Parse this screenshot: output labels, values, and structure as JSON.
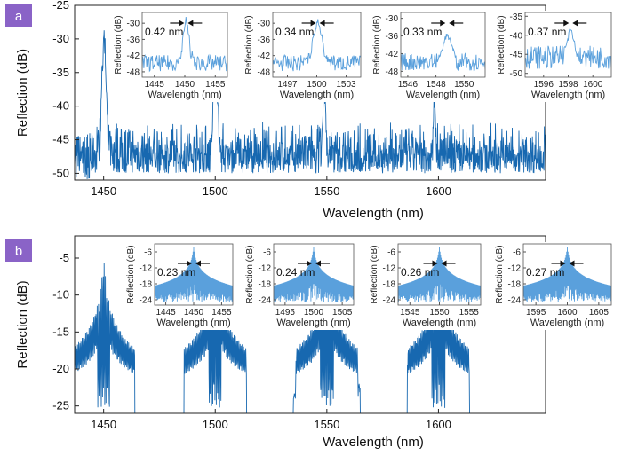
{
  "colors": {
    "trace": "#1768b0",
    "inset_trace": "#5aa0dc",
    "badge": "#8a63c7",
    "axis": "#222222"
  },
  "chart_data": [
    {
      "panel": "a",
      "type": "line",
      "xlabel": "Wavelength (nm)",
      "ylabel": "Reflection (dB)",
      "xlim": [
        1437,
        1648
      ],
      "ylim": [
        -51,
        -25
      ],
      "xticks": [
        1450,
        1500,
        1550,
        1600
      ],
      "yticks": [
        -25,
        -30,
        -35,
        -40,
        -45,
        -50
      ],
      "noise_floor_db": [
        -50,
        -42
      ],
      "peaks": [
        {
          "x": 1450.2,
          "y": -25.6
        },
        {
          "x": 1500.1,
          "y": -28.0
        },
        {
          "x": 1548.8,
          "y": -33.5
        },
        {
          "x": 1598.2,
          "y": -36.5
        }
      ],
      "insets": [
        {
          "xlabel": "Wavelength (nm)",
          "ylabel": "Reflection (dB)",
          "xticks": [
            1445,
            1450,
            1455
          ],
          "yticks": [
            -30,
            -36,
            -42,
            -48
          ],
          "xlim": [
            1443,
            1457
          ],
          "ylim": [
            -50,
            -26
          ],
          "center": 1450.2,
          "peak": -27,
          "floor": -46,
          "fwhm": "0.42 nm"
        },
        {
          "xlabel": "Wavelength (nm)",
          "ylabel": "Reflection (dB)",
          "xticks": [
            1497,
            1500,
            1503
          ],
          "yticks": [
            -30,
            -36,
            -42,
            -48
          ],
          "xlim": [
            1495.5,
            1504.5
          ],
          "ylim": [
            -50,
            -26
          ],
          "center": 1500.1,
          "peak": -28,
          "floor": -46,
          "fwhm": "0.34 nm"
        },
        {
          "xlabel": "Wavelength (nm)",
          "ylabel": "Reflection (dB)",
          "xticks": [
            1546,
            1548,
            1550
          ],
          "yticks": [
            -30,
            -36,
            -42,
            -48
          ],
          "xlim": [
            1545.5,
            1551.5
          ],
          "ylim": [
            -50,
            -28
          ],
          "center": 1548.8,
          "peak": -34,
          "floor": -46,
          "fwhm": "0.33 nm"
        },
        {
          "xlabel": "Wavelength (nm)",
          "ylabel": "Reflection (dB)",
          "xticks": [
            1596,
            1598,
            1600
          ],
          "yticks": [
            -35,
            -40,
            -45,
            -50
          ],
          "xlim": [
            1594.5,
            1601.5
          ],
          "ylim": [
            -51,
            -34
          ],
          "center": 1598.2,
          "peak": -37,
          "floor": -47,
          "fwhm": "0.37 nm"
        }
      ]
    },
    {
      "panel": "b",
      "type": "line",
      "xlabel": "Wavelength (nm)",
      "ylabel": "Reflection (dB)",
      "xlim": [
        1437,
        1648
      ],
      "ylim": [
        -26,
        -2
      ],
      "xticks": [
        1450,
        1500,
        1550,
        1600
      ],
      "yticks": [
        -5,
        -10,
        -15,
        -20,
        -25
      ],
      "peaks": [
        {
          "x": 1450,
          "y": -2.5
        },
        {
          "x": 1500,
          "y": -2.5
        },
        {
          "x": 1550,
          "y": -2.5
        },
        {
          "x": 1600,
          "y": -2.5
        }
      ],
      "insets": [
        {
          "xlabel": "Wavelength (nm)",
          "ylabel": "Reflection (dB)",
          "xticks": [
            1445,
            1450,
            1455
          ],
          "yticks": [
            -6,
            -12,
            -18,
            -24
          ],
          "xlim": [
            1443,
            1457
          ],
          "ylim": [
            -26,
            -3
          ],
          "center": 1450,
          "peak": -4,
          "floor": -25,
          "fwhm": "0.23 nm"
        },
        {
          "xlabel": "Wavelength (nm)",
          "ylabel": "Reflection (dB)",
          "xticks": [
            1495,
            1500,
            1505
          ],
          "yticks": [
            -6,
            -12,
            -18,
            -24
          ],
          "xlim": [
            1493,
            1507
          ],
          "ylim": [
            -26,
            -3
          ],
          "center": 1500,
          "peak": -4,
          "floor": -25,
          "fwhm": "0.24 nm"
        },
        {
          "xlabel": "Wavelength (nm)",
          "ylabel": "Reflection (dB)",
          "xticks": [
            1545,
            1550,
            1555
          ],
          "yticks": [
            -6,
            -12,
            -18,
            -24
          ],
          "xlim": [
            1543,
            1557
          ],
          "ylim": [
            -26,
            -3
          ],
          "center": 1550,
          "peak": -4,
          "floor": -25,
          "fwhm": "0.26 nm"
        },
        {
          "xlabel": "Wavelength (nm)",
          "ylabel": "Reflection (dB)",
          "xticks": [
            1595,
            1600,
            1605
          ],
          "yticks": [
            -6,
            -12,
            -18,
            -24
          ],
          "xlim": [
            1593,
            1607
          ],
          "ylim": [
            -26,
            -3
          ],
          "center": 1600,
          "peak": -4,
          "floor": -25,
          "fwhm": "0.27 nm"
        }
      ]
    }
  ]
}
